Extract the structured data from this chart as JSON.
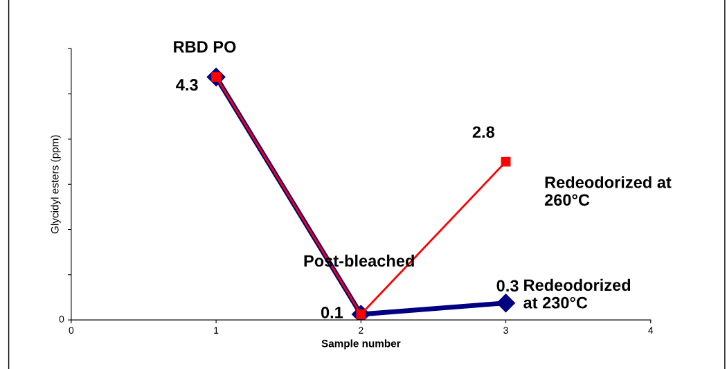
{
  "chart_data": {
    "type": "line",
    "xlabel": "Sample number",
    "ylabel": "Glycidyl esters (ppm)",
    "x": [
      1,
      2,
      3
    ],
    "series": [
      {
        "color": "#000080",
        "values": [
          4.3,
          0.1,
          0.3
        ],
        "marker": "diamond",
        "value_labels": [
          null,
          null,
          "0.3"
        ]
      },
      {
        "color": "#ff0000",
        "values": [
          4.3,
          0.1,
          2.8
        ],
        "marker": "square",
        "value_labels": [
          "4.3",
          "0.1",
          "2.8"
        ]
      }
    ],
    "annotations": [
      {
        "text": "RBD PO",
        "x": 1,
        "y": 4.3
      },
      {
        "text": "Post-bleached",
        "x": 2,
        "y": 0.1
      },
      {
        "text": "Redeodorized at\n260°C",
        "x": 3,
        "y": 2.8
      },
      {
        "text": "Redeodorized\nat 230°C",
        "x": 3,
        "y": 0.3
      },
      "0"
    ],
    "xlim": [
      0,
      4
    ],
    "xticks": [
      0,
      1,
      2,
      3,
      4
    ],
    "ylim": [
      0,
      4.8
    ],
    "yticks": [
      {
        "value": 0,
        "label": null
      },
      {
        "value": 0.8,
        "label": null
      },
      {
        "value": 1.6,
        "label": null
      },
      {
        "value": 2.4,
        "label": null
      },
      {
        "value": 3.2,
        "label": null
      },
      {
        "value": 4.0,
        "label": null
      },
      {
        "value": 4.8,
        "label": null
      }
    ],
    "grid": false,
    "legend": false
  }
}
